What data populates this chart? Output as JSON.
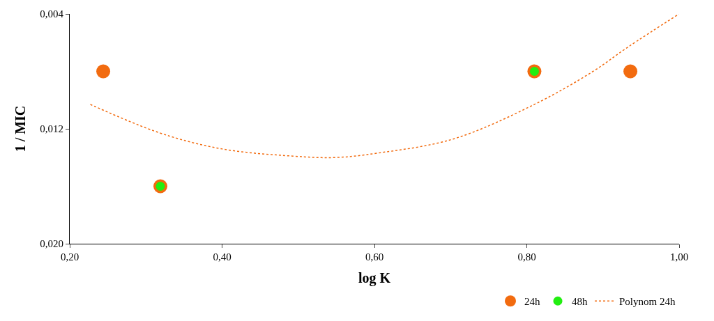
{
  "chart_data": {
    "type": "scatter",
    "xlabel": "log K",
    "ylabel": "1 / MIC",
    "xlim": [
      0.2,
      1.0
    ],
    "xticks": [
      {
        "value": 0.2,
        "label": "0,20"
      },
      {
        "value": 0.4,
        "label": "0,40"
      },
      {
        "value": 0.6,
        "label": "0,60"
      },
      {
        "value": 0.8,
        "label": "0,80"
      },
      {
        "value": 1.0,
        "label": "1,00"
      }
    ],
    "ylim": [
      0.02,
      0.004
    ],
    "yticks": [
      {
        "value": 0.004,
        "label": "0,004"
      },
      {
        "value": 0.012,
        "label": "0,012"
      },
      {
        "value": 0.02,
        "label": "0,020"
      }
    ],
    "grid": false,
    "legend": "bottom",
    "series": [
      {
        "name": "24h",
        "marker": "circle",
        "color": "#f26b0f",
        "x": [
          0.244,
          0.319,
          0.81,
          0.936
        ],
        "values": [
          0.008,
          0.016,
          0.008,
          0.008
        ]
      },
      {
        "name": "48h",
        "marker": "circle",
        "color": "#22ee11",
        "x": [
          0.319,
          0.81
        ],
        "values": [
          0.016,
          0.008
        ]
      },
      {
        "name": "Polynom 24h",
        "type": "line",
        "line_style": "dotted",
        "color": "#f26b0f",
        "x": [
          0.227,
          0.319,
          0.4,
          0.493,
          0.548,
          0.603,
          0.704,
          0.81,
          0.887,
          0.933,
          1.0
        ],
        "values": [
          0.0103,
          0.0123,
          0.0134,
          0.0139,
          0.014,
          0.0137,
          0.0127,
          0.0103,
          0.008,
          0.0063,
          0.004
        ]
      }
    ]
  }
}
